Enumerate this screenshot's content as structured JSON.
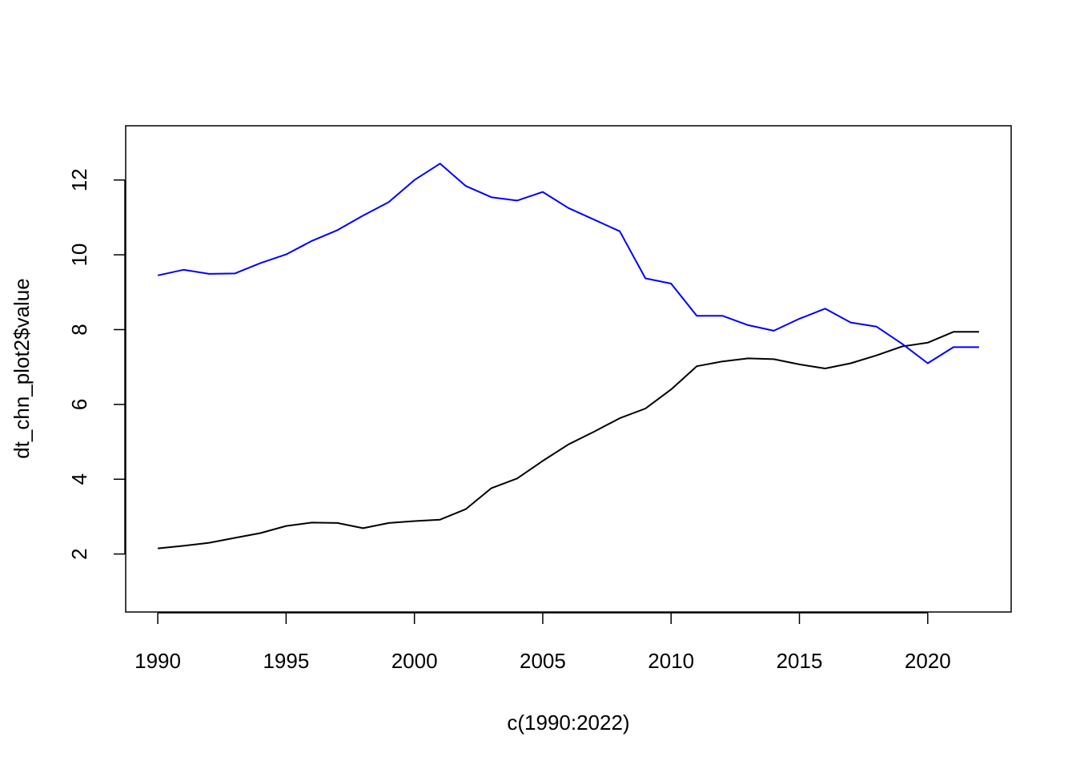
{
  "chart_data": {
    "type": "line",
    "title": "",
    "xlabel": "c(1990:2022)",
    "ylabel": "dt_chn_plot2$value",
    "xlim": [
      1988.75,
      2023.25
    ],
    "ylim": [
      0.45,
      13.45
    ],
    "x_ticks": [
      1990,
      1995,
      2000,
      2005,
      2010,
      2015,
      2020
    ],
    "y_ticks": [
      2,
      4,
      6,
      8,
      10,
      12
    ],
    "grid": false,
    "legend": "none",
    "x": [
      1990,
      1991,
      1992,
      1993,
      1994,
      1995,
      1996,
      1997,
      1998,
      1999,
      2000,
      2001,
      2002,
      2003,
      2004,
      2005,
      2006,
      2007,
      2008,
      2009,
      2010,
      2011,
      2012,
      2013,
      2014,
      2015,
      2016,
      2017,
      2018,
      2019,
      2020,
      2021,
      2022
    ],
    "series": [
      {
        "color": "#000000",
        "values": [
          2.15,
          2.22,
          2.3,
          2.43,
          2.56,
          2.75,
          2.84,
          2.83,
          2.69,
          2.83,
          2.88,
          2.92,
          3.2,
          3.76,
          4.02,
          4.49,
          4.93,
          5.27,
          5.63,
          5.89,
          6.4,
          7.02,
          7.15,
          7.23,
          7.21,
          7.07,
          6.96,
          7.1,
          7.31,
          7.55,
          7.65,
          7.94,
          7.94
        ]
      },
      {
        "color": "#0000ff",
        "values": [
          9.45,
          9.6,
          9.49,
          9.5,
          9.78,
          10.01,
          10.37,
          10.66,
          11.05,
          11.41,
          12.0,
          12.44,
          11.84,
          11.54,
          11.45,
          11.68,
          11.25,
          10.94,
          10.63,
          9.37,
          9.23,
          8.37,
          8.37,
          8.12,
          7.97,
          8.29,
          8.56,
          8.19,
          8.08,
          7.62,
          7.1,
          7.53,
          7.53
        ]
      }
    ]
  }
}
